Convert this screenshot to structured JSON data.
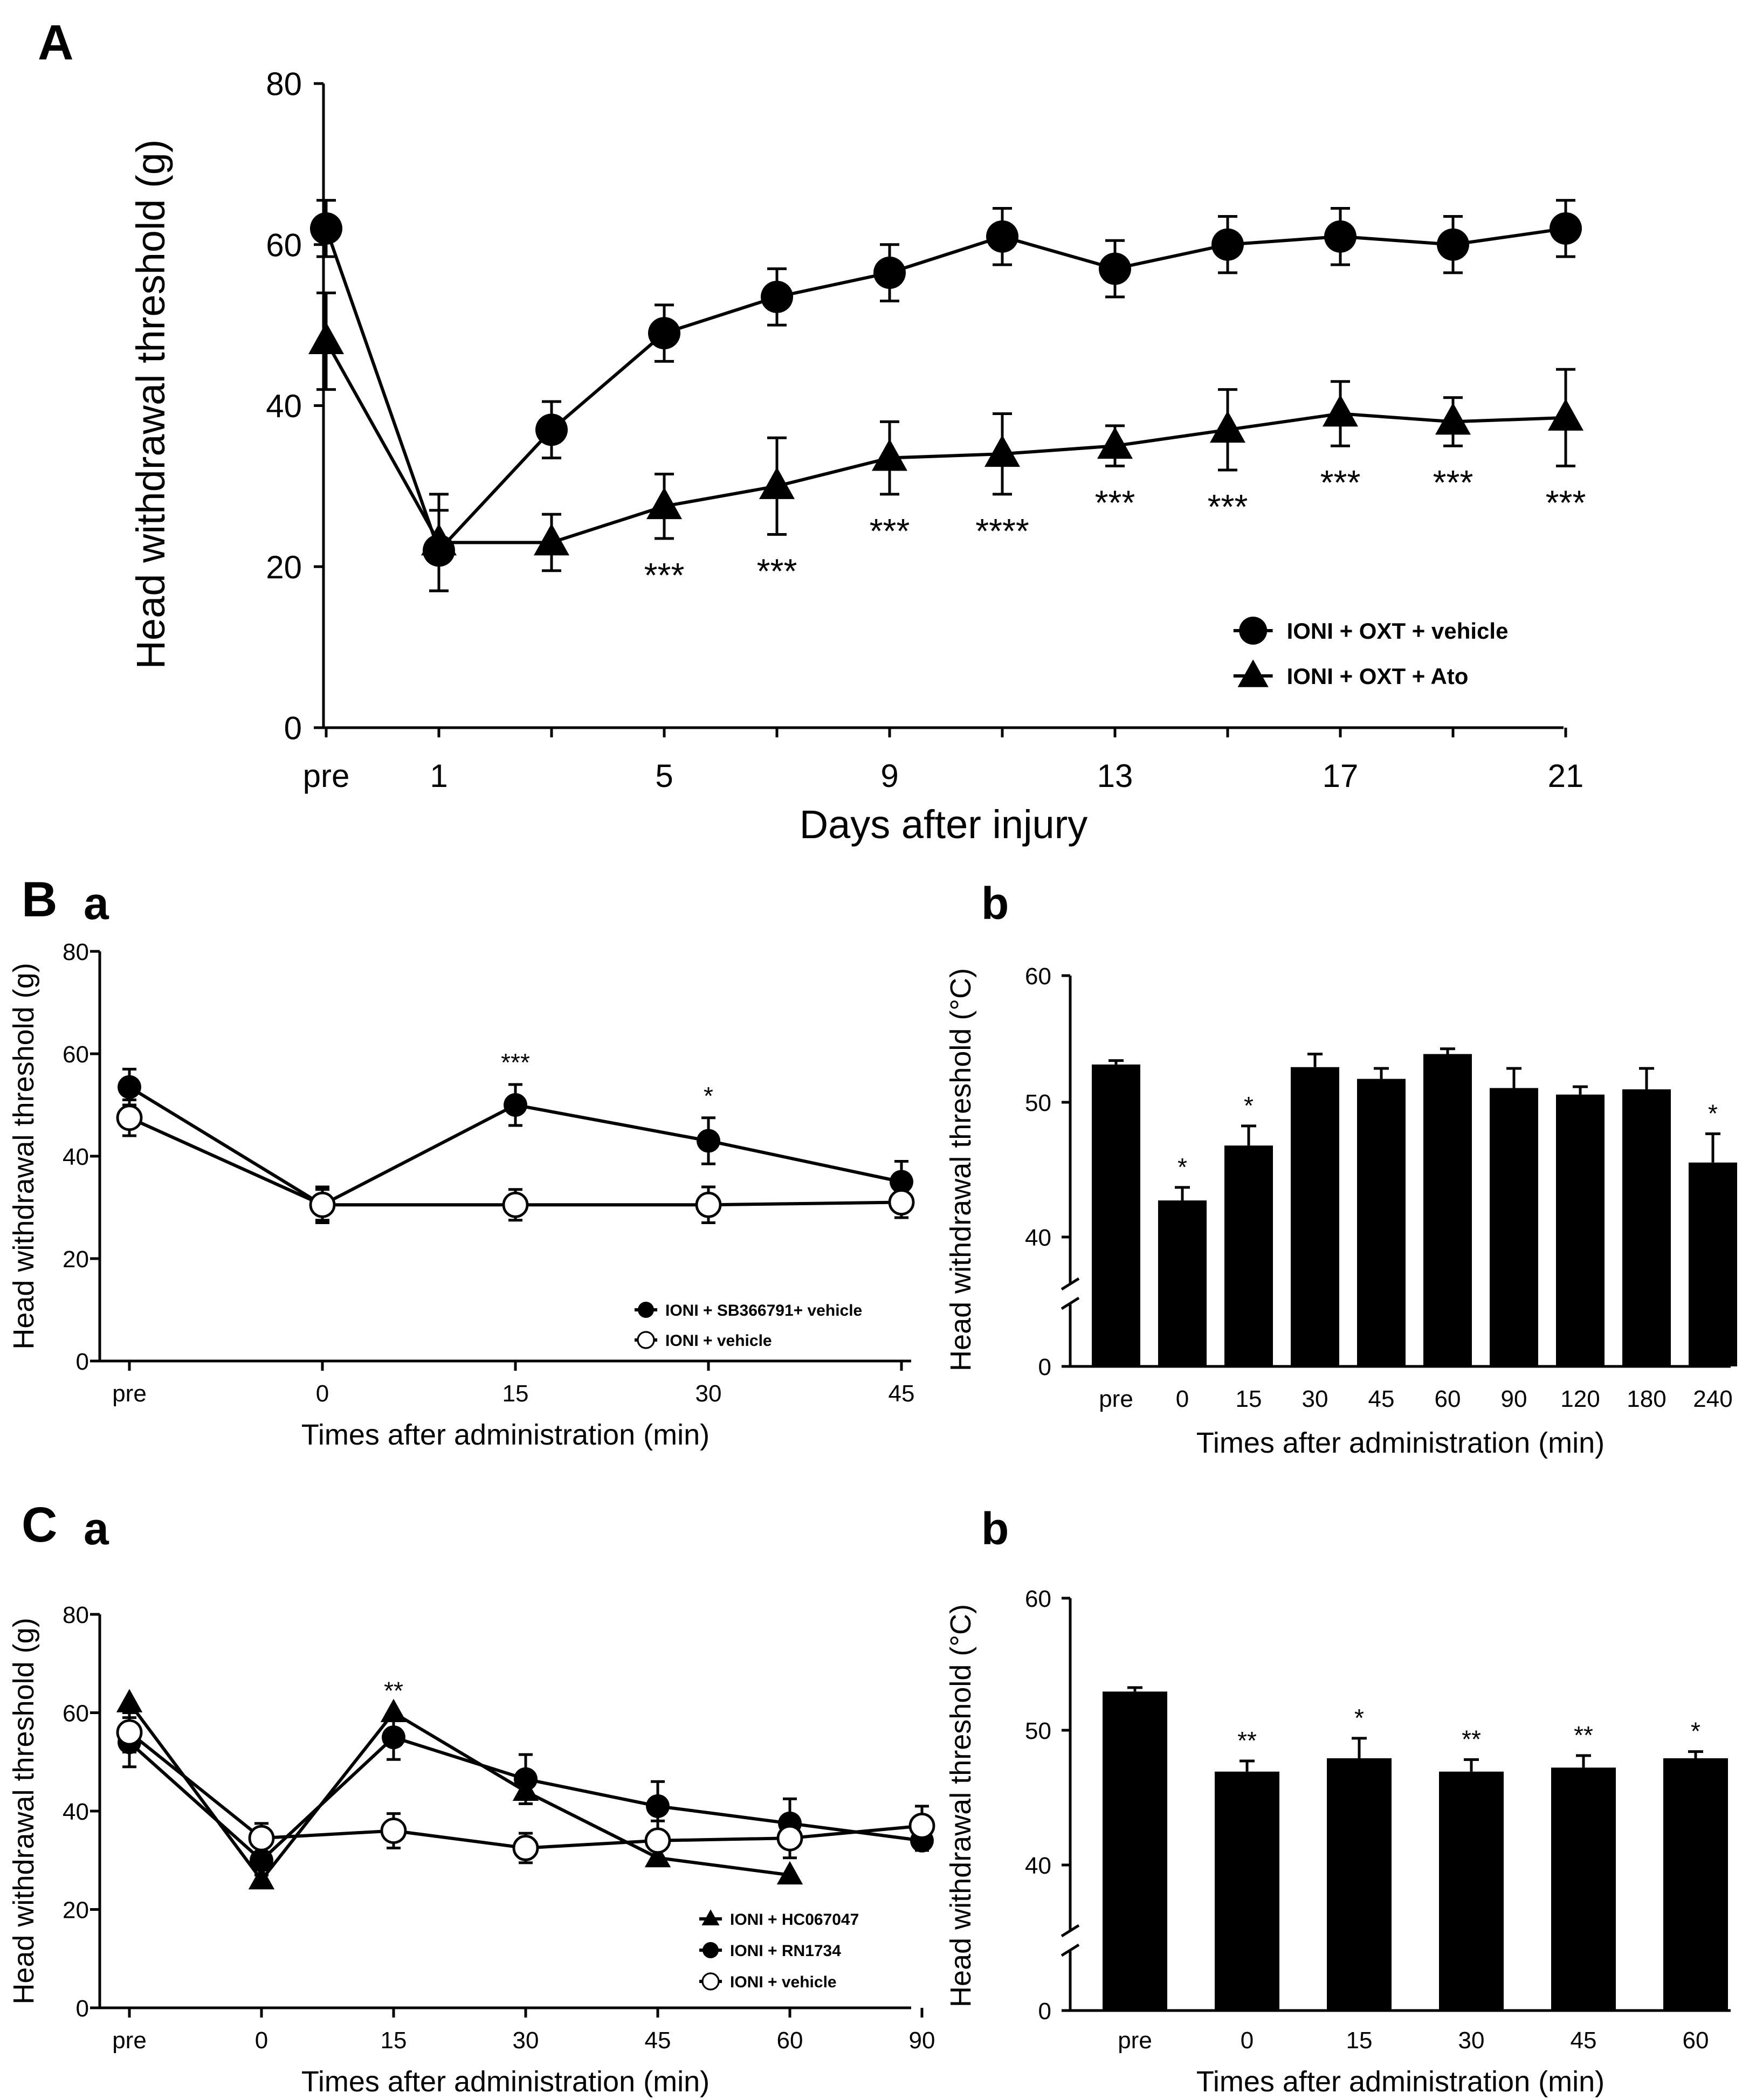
{
  "chart_data": [
    {
      "id": "A",
      "panel_label": "A",
      "type": "line",
      "xlabel": "Days after injury",
      "ylabel": "Head withdrawal threshold (g)",
      "ylim": [
        0,
        80
      ],
      "yticks": [
        0,
        20,
        40,
        60,
        80
      ],
      "categories": [
        "pre",
        "1",
        "3",
        "5",
        "7",
        "9",
        "11",
        "13",
        "15",
        "17",
        "19",
        "21"
      ],
      "shown_tick_labels": [
        "pre",
        "1",
        "5",
        "9",
        "13",
        "17",
        "21"
      ],
      "legend_position": "bottom-right",
      "series": [
        {
          "name": "IONI + OXT + vehicle",
          "marker": "circle-filled",
          "values": [
            62,
            22,
            37,
            49,
            53.5,
            56.5,
            61,
            57,
            60,
            61,
            60,
            62
          ],
          "errors": [
            3.5,
            5,
            3.5,
            3.5,
            3.5,
            3.5,
            3.5,
            3.5,
            3.5,
            3.5,
            3.5,
            3.5
          ]
        },
        {
          "name": "IONI + OXT + Ato",
          "marker": "triangle-filled",
          "values": [
            48,
            23,
            23,
            27.5,
            30,
            33.5,
            34,
            35,
            37,
            39,
            38,
            38.5
          ],
          "errors": [
            6,
            6,
            3.5,
            4,
            6,
            4.5,
            5,
            2.5,
            5,
            4,
            3,
            6
          ]
        }
      ],
      "annotations": [
        "",
        "",
        "",
        "***",
        "***",
        "***",
        "****",
        "***",
        "***",
        "***",
        "***",
        "***"
      ]
    },
    {
      "id": "Ba",
      "panel_label": "B",
      "sub_label": "a",
      "type": "line",
      "xlabel": "Times after administration (min)",
      "ylabel": "Head withdrawal threshold (g)",
      "ylim": [
        0,
        80
      ],
      "yticks": [
        0,
        20,
        40,
        60,
        80
      ],
      "categories": [
        "pre",
        "0",
        "15",
        "30",
        "45"
      ],
      "legend_position": "bottom-right",
      "series": [
        {
          "name": "IONI + SB366791+ vehicle",
          "marker": "circle-filled",
          "values": [
            53.5,
            30.5,
            50,
            43,
            35
          ],
          "errors": [
            3.5,
            3,
            4,
            4.5,
            4
          ]
        },
        {
          "name": "IONI + vehicle",
          "marker": "circle-open",
          "values": [
            47.5,
            30.5,
            30.5,
            30.5,
            31
          ],
          "errors": [
            3.5,
            3.5,
            3,
            3.5,
            3
          ]
        }
      ],
      "annotations": [
        "",
        "",
        "***",
        "*",
        ""
      ]
    },
    {
      "id": "Bb",
      "sub_label": "b",
      "type": "bar",
      "xlabel": "Times after administration (min)",
      "ylabel": "Head withdrawal threshold (°C)",
      "ylim": [
        0,
        60
      ],
      "axis_break": [
        0,
        36
      ],
      "yticks": [
        0,
        40,
        50,
        60
      ],
      "categories": [
        "pre",
        "0",
        "15",
        "30",
        "45",
        "60",
        "90",
        "120",
        "180",
        "240"
      ],
      "values": [
        53.2,
        42.8,
        47,
        53,
        52.1,
        54,
        51.4,
        50.9,
        51.3,
        45.7
      ],
      "errors": [
        0.3,
        1,
        1.5,
        1,
        0.8,
        0.4,
        1.5,
        0.6,
        1.6,
        2.2
      ],
      "annotations": [
        "",
        "*",
        "*",
        "",
        "",
        "",
        "",
        "",
        "",
        "*"
      ]
    },
    {
      "id": "Ca",
      "panel_label": "C",
      "sub_label": "a",
      "type": "line",
      "xlabel": "Times after administration (min)",
      "ylabel": "Head withdrawal threshold (g)",
      "ylim": [
        0,
        80
      ],
      "yticks": [
        0,
        20,
        40,
        60,
        80
      ],
      "categories": [
        "pre",
        "0",
        "15",
        "30",
        "45",
        "60",
        "90"
      ],
      "legend_position": "bottom-right",
      "series": [
        {
          "name": "IONI + HC067047",
          "marker": "triangle-filled",
          "values": [
            62,
            26,
            60,
            44,
            30.5,
            27,
            null
          ],
          "errors": [
            0,
            0,
            0,
            0,
            0,
            0,
            null
          ]
        },
        {
          "name": "IONI + RN1734",
          "marker": "circle-filled",
          "values": [
            54,
            30,
            55,
            46.5,
            41,
            37.5,
            34
          ],
          "errors": [
            5,
            3,
            4.5,
            5,
            5,
            5,
            2
          ]
        },
        {
          "name": "IONI + vehicle",
          "marker": "circle-open",
          "values": [
            56,
            34.5,
            36,
            32.5,
            34,
            34.5,
            37
          ],
          "errors": [
            4,
            3,
            3.5,
            3,
            4,
            4,
            4
          ]
        }
      ],
      "annotations": [
        "",
        "",
        "**",
        "",
        "",
        "",
        ""
      ]
    },
    {
      "id": "Cb",
      "sub_label": "b",
      "type": "bar",
      "xlabel": "Times after administration (min)",
      "ylabel": "Head withdrawal threshold (°C)",
      "ylim": [
        0,
        60
      ],
      "axis_break": [
        0,
        36
      ],
      "yticks": [
        0,
        40,
        50,
        60
      ],
      "categories": [
        "pre",
        "0",
        "15",
        "30",
        "45",
        "60"
      ],
      "values": [
        53,
        47,
        48,
        47,
        47.3,
        48
      ],
      "errors": [
        0.3,
        0.8,
        1.5,
        0.9,
        0.9,
        0.5
      ],
      "annotations": [
        "",
        "**",
        "*",
        "**",
        "**",
        "*"
      ]
    }
  ]
}
